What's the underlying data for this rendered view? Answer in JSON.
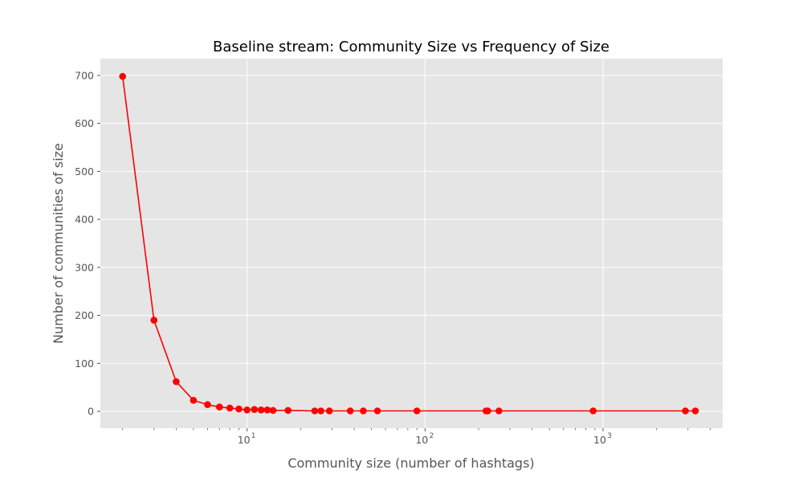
{
  "chart_data": {
    "type": "line",
    "title": "Baseline stream: Community Size vs Frequency of Size",
    "xlabel": "Community size (number of hashtags)",
    "ylabel": "Number of communities of size",
    "x_scale": "log",
    "xlim": [
      1.5,
      4700
    ],
    "ylim": [
      -35,
      735
    ],
    "grid": true,
    "background": "#e5e5e5",
    "line_color": "#ff0000",
    "marker": "circle",
    "x_ticks": [
      {
        "value": 10,
        "base": "10",
        "exp": "1"
      },
      {
        "value": 100,
        "base": "10",
        "exp": "2"
      },
      {
        "value": 1000,
        "base": "10",
        "exp": "3"
      }
    ],
    "y_ticks": [
      0,
      100,
      200,
      300,
      400,
      500,
      600,
      700
    ],
    "series": [
      {
        "x": [
          2,
          3,
          4,
          5,
          6,
          7,
          8,
          9,
          10,
          11,
          12,
          13,
          14,
          17,
          24,
          26,
          29,
          38,
          45,
          54,
          90,
          220,
          225,
          260,
          880,
          2900,
          3300
        ],
        "y": [
          698,
          190,
          62,
          23,
          14,
          9,
          7,
          5,
          3,
          4,
          3,
          3,
          2,
          2,
          1,
          1,
          1,
          1,
          1,
          1,
          1,
          1,
          1,
          1,
          1,
          1,
          1
        ]
      }
    ]
  }
}
